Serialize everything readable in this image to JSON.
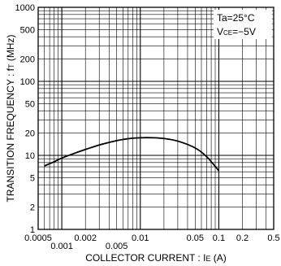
{
  "chart_data": {
    "type": "line",
    "xlabel": "COLLECTOR CURRENT : I",
    "xlabel_sub": "E",
    "xlabel_unit": " (A)",
    "ylabel": "TRANSITION FREQUENCY : f",
    "ylabel_sub": "T",
    "ylabel_unit": " (MHz)",
    "x_scale": "log",
    "y_scale": "log",
    "xlim": [
      0.0005,
      0.5
    ],
    "ylim": [
      1,
      1000
    ],
    "grid": true,
    "x_ticks_row1": [
      {
        "value": 0.0005,
        "label": "0.0005"
      },
      {
        "value": 0.002,
        "label": "0.002"
      },
      {
        "value": 0.01,
        "label": "0.01"
      },
      {
        "value": 0.05,
        "label": "0.05"
      },
      {
        "value": 0.1,
        "label": "0.1"
      },
      {
        "value": 0.2,
        "label": "0.2"
      },
      {
        "value": 0.5,
        "label": "0.5"
      }
    ],
    "x_ticks_row2": [
      {
        "value": 0.001,
        "label": "0.001"
      },
      {
        "value": 0.005,
        "label": "0.005"
      }
    ],
    "y_ticks": [
      {
        "value": 1,
        "label": "1"
      },
      {
        "value": 2,
        "label": "2"
      },
      {
        "value": 5,
        "label": "5"
      },
      {
        "value": 10,
        "label": "10"
      },
      {
        "value": 20,
        "label": "20"
      },
      {
        "value": 50,
        "label": "50"
      },
      {
        "value": 100,
        "label": "100"
      },
      {
        "value": 200,
        "label": "200"
      },
      {
        "value": 500,
        "label": "500"
      },
      {
        "value": 1000,
        "label": "1000"
      }
    ],
    "conditions": {
      "line1": "Ta=25°C",
      "line2_prefix": "V",
      "line2_sub": "CE",
      "line2_suffix": "=−5V",
      "placement": "top-right"
    },
    "series": [
      {
        "x": [
          0.0006,
          0.0008,
          0.001,
          0.0015,
          0.002,
          0.003,
          0.005,
          0.007,
          0.01,
          0.015,
          0.02,
          0.03,
          0.05,
          0.07,
          0.1
        ],
        "y": [
          7.2,
          8.2,
          9.2,
          10.8,
          12.0,
          13.8,
          15.8,
          16.8,
          17.3,
          17.3,
          16.9,
          15.6,
          12.6,
          9.6,
          6.2
        ]
      }
    ]
  }
}
